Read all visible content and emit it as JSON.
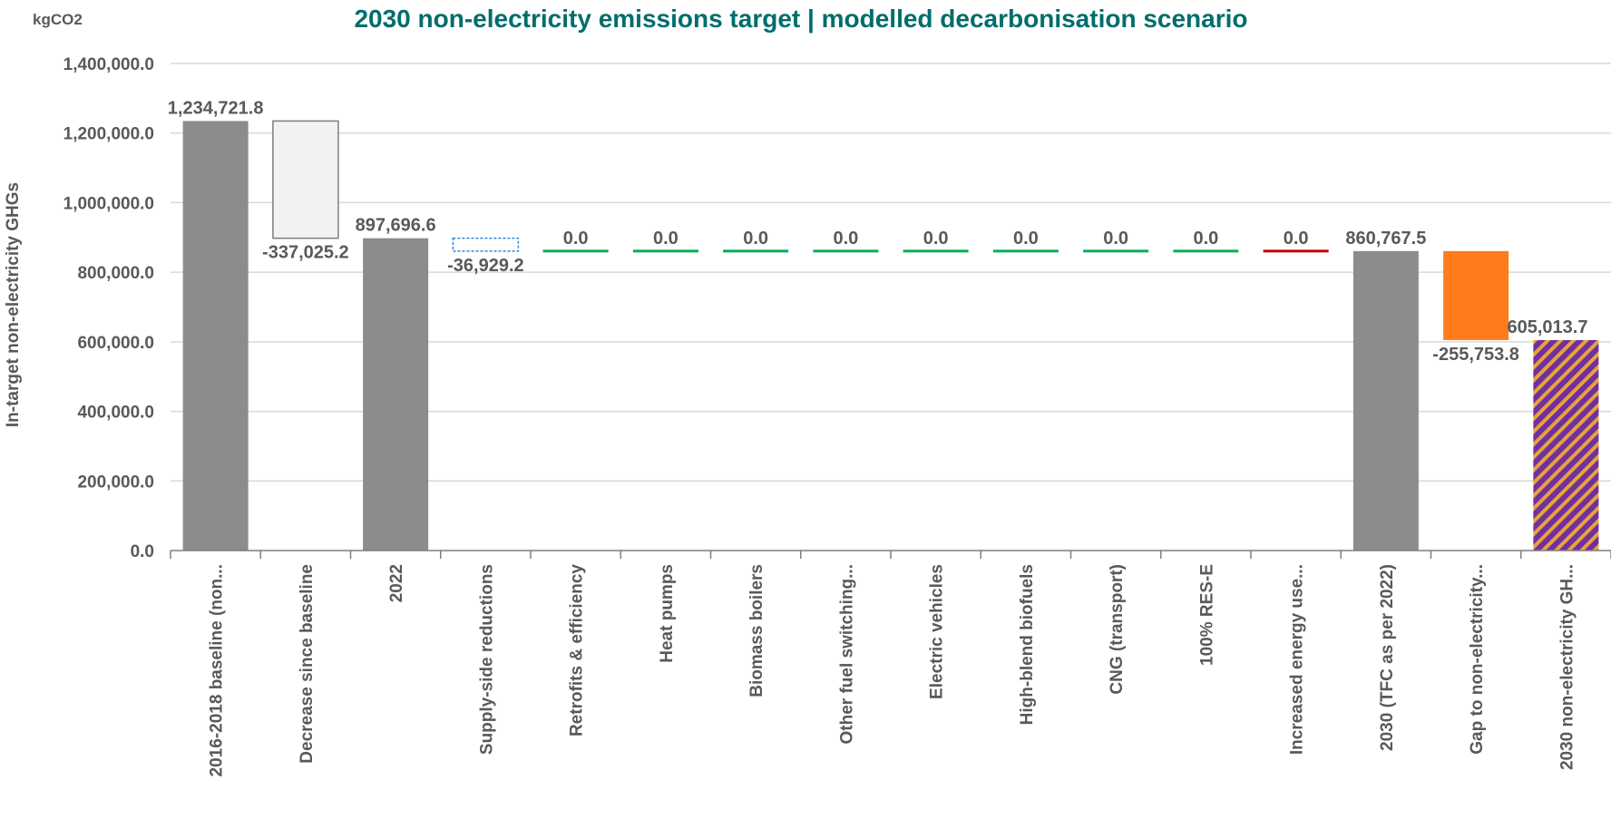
{
  "chart_data": {
    "type": "waterfall",
    "title": "2030 non-electricity emissions target | modelled decarbonisation scenario",
    "unit_label": "kgCO2",
    "ylabel": "In-target non-electricity GHGs",
    "ylim": [
      0,
      1400000
    ],
    "yticks": [
      0,
      200000,
      400000,
      600000,
      800000,
      1000000,
      1200000,
      1400000
    ],
    "ytick_labels": [
      "0.0",
      "200,000.0",
      "400,000.0",
      "600,000.0",
      "800,000.0",
      "1,000,000.0",
      "1,200,000.0",
      "1,400,000.0"
    ],
    "grid": true,
    "bars": [
      {
        "category": "2016-2018 baseline (non...",
        "kind": "total",
        "value": 1234721.8,
        "label": "1,234,721.8",
        "color": "#8c8c8c"
      },
      {
        "category": "Decrease since baseline",
        "kind": "decrease",
        "value": -337025.2,
        "label": "-337,025.2",
        "color": "#f2f2f2",
        "outline": "#7f7f7f"
      },
      {
        "category": "2022",
        "kind": "total",
        "value": 897696.6,
        "label": "897,696.6",
        "color": "#8c8c8c"
      },
      {
        "category": "Supply-side reductions",
        "kind": "decrease",
        "value": -36929.2,
        "label": "-36,929.2",
        "color": "#ffffff",
        "outline": "#2e86de",
        "dashed": true
      },
      {
        "category": "Retrofits & efficiency",
        "kind": "change",
        "value": 0.0,
        "label": "0.0",
        "color": "#00b050"
      },
      {
        "category": "Heat pumps",
        "kind": "change",
        "value": 0.0,
        "label": "0.0",
        "color": "#00b050"
      },
      {
        "category": "Biomass boilers",
        "kind": "change",
        "value": 0.0,
        "label": "0.0",
        "color": "#00b050"
      },
      {
        "category": "Other fuel switching...",
        "kind": "change",
        "value": 0.0,
        "label": "0.0",
        "color": "#00b050"
      },
      {
        "category": "Electric vehicles",
        "kind": "change",
        "value": 0.0,
        "label": "0.0",
        "color": "#00b050"
      },
      {
        "category": "High-blend biofuels",
        "kind": "change",
        "value": 0.0,
        "label": "0.0",
        "color": "#00b050"
      },
      {
        "category": "CNG (transport)",
        "kind": "change",
        "value": 0.0,
        "label": "0.0",
        "color": "#00b050"
      },
      {
        "category": "100% RES-E",
        "kind": "change",
        "value": 0.0,
        "label": "0.0",
        "color": "#00b050"
      },
      {
        "category": "Increased energy use...",
        "kind": "change",
        "value": 0.0,
        "label": "0.0",
        "color": "#c00000"
      },
      {
        "category": "2030 (TFC as per 2022)",
        "kind": "total",
        "value": 860767.5,
        "label": "860,767.5",
        "color": "#8c8c8c"
      },
      {
        "category": "Gap to non-electricity...",
        "kind": "decrease",
        "value": -255753.8,
        "label": "-255,753.8",
        "color": "#ff7b1c"
      },
      {
        "category": "2030 non-electricity GH...",
        "kind": "total",
        "value": 605013.7,
        "label": "605,013.7",
        "color": "hatched-purple-orange"
      }
    ]
  },
  "colors": {
    "title": "#006d6d",
    "text": "#595959",
    "grid": "#d9d9d9",
    "axis": "#7f7f7f",
    "total": "#8c8c8c",
    "hatch_purple": "#7030a0",
    "hatch_orange": "#e8a33a"
  }
}
